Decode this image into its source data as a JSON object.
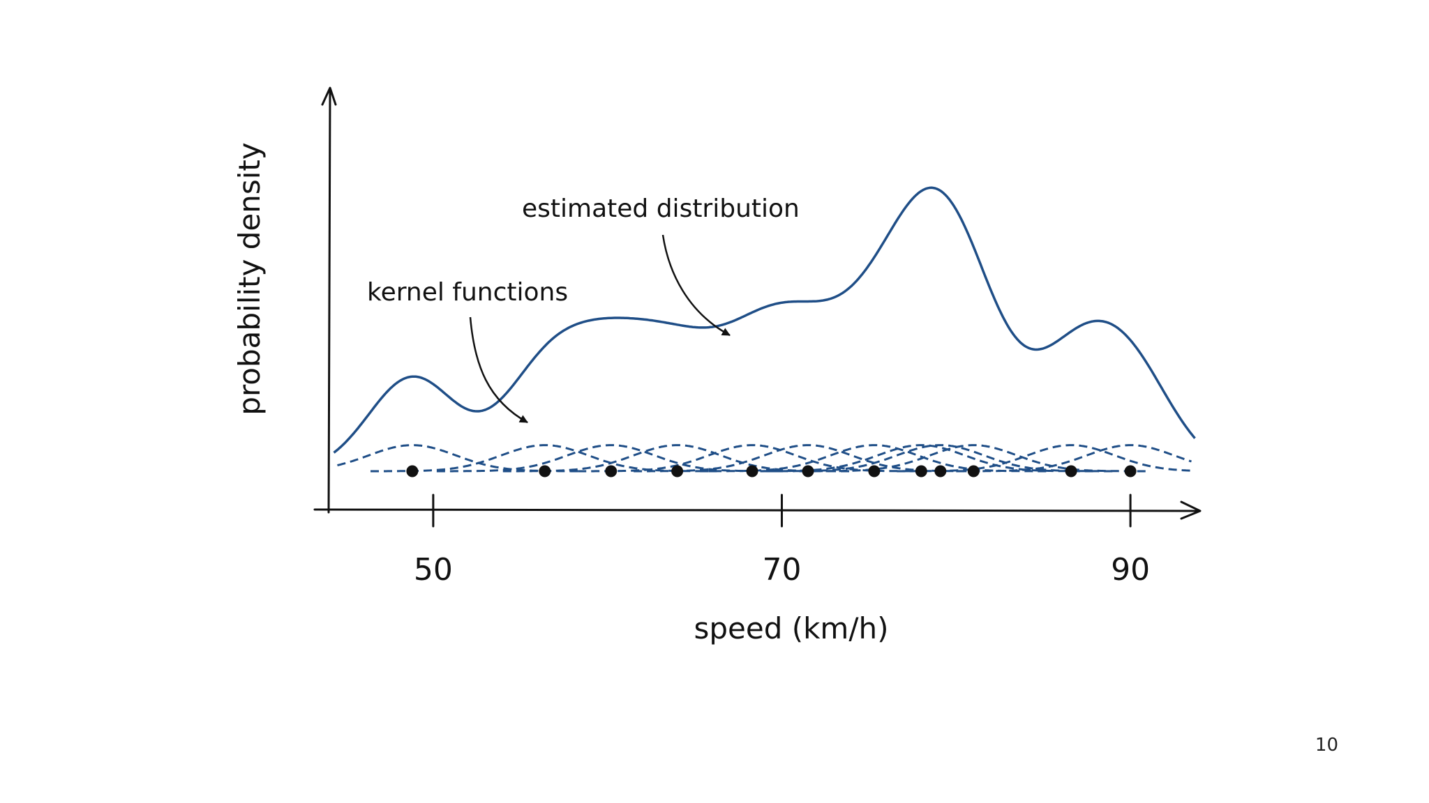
{
  "slide": {
    "page_number": "10"
  },
  "chart_data": {
    "type": "line",
    "title": "",
    "xlabel": "speed (km/h)",
    "ylabel": "probability density",
    "xlim": [
      44,
      94
    ],
    "ylim": [
      0,
      0.055
    ],
    "x_ticks": [
      50,
      70,
      90
    ],
    "grid": false,
    "data_points": [
      48.8,
      56.4,
      60.2,
      64,
      68.3,
      71.5,
      75.3,
      78,
      79.1,
      81,
      86.6,
      90
    ],
    "kernel_bandwidth": 2.5,
    "kernel_peak_density": 0.0037,
    "series": [
      {
        "name": "estimated distribution",
        "style": "solid",
        "color": "#1f4e87"
      },
      {
        "name": "kernel functions",
        "style": "dashed",
        "color": "#1f4e87"
      }
    ],
    "annotations": [
      {
        "text": "estimated distribution",
        "points_to": "estimated distribution"
      },
      {
        "text": "kernel functions",
        "points_to": "kernel functions"
      }
    ]
  }
}
